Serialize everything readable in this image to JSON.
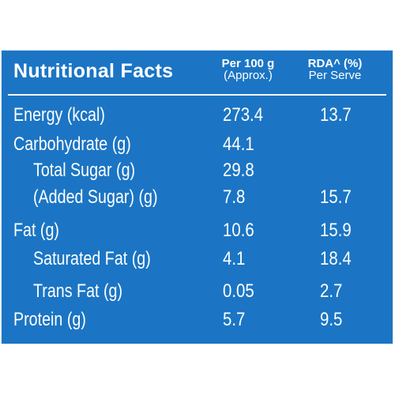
{
  "header": {
    "title": "Nutritional Facts",
    "col1_line1": "Per 100 g",
    "col1_line2": "(Approx.)",
    "col2_line1": "RDA^ (%)",
    "col2_line2": "Per Serve"
  },
  "rows": [
    {
      "label": "Energy (kcal)",
      "per100": "273.4",
      "rda": "13.7"
    },
    {
      "label": "Carbohydrate (g)",
      "per100": "44.1",
      "rda": ""
    },
    {
      "label": "Total Sugar (g)",
      "per100": "29.8",
      "rda": ""
    },
    {
      "label": "(Added Sugar) (g)",
      "per100": "7.8",
      "rda": "15.7"
    },
    {
      "label": "Fat (g)",
      "per100": "10.6",
      "rda": "15.9"
    },
    {
      "label": "Saturated Fat (g)",
      "per100": "4.1",
      "rda": "18.4"
    },
    {
      "label": "Trans Fat (g)",
      "per100": "0.05",
      "rda": "2.7"
    },
    {
      "label": "Protein (g)",
      "per100": "5.7",
      "rda": "9.5"
    }
  ],
  "colors": {
    "panel": "#1b75c4",
    "text": "#ffffff"
  }
}
